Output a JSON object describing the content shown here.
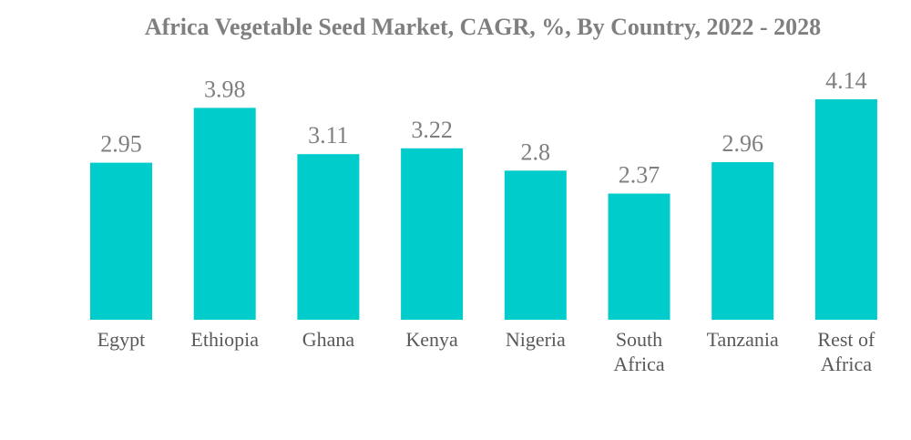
{
  "chart_data": {
    "type": "bar",
    "title": "Africa Vegetable Seed Market, CAGR, %, By Country, 2022 - 2028",
    "xlabel": "",
    "ylabel": "",
    "categories": [
      [
        "Egypt"
      ],
      [
        "Ethiopia"
      ],
      [
        "Ghana"
      ],
      [
        "Kenya"
      ],
      [
        "Nigeria"
      ],
      [
        "South",
        "Africa"
      ],
      [
        "Tanzania"
      ],
      [
        "Rest of",
        "Africa"
      ]
    ],
    "values": [
      2.95,
      3.98,
      3.11,
      3.22,
      2.8,
      2.37,
      2.96,
      4.14
    ],
    "value_labels": [
      "2.95",
      "3.98",
      "3.11",
      "3.22",
      "2.8",
      "2.37",
      "2.96",
      "4.14"
    ],
    "ylim": [
      0,
      4.14
    ],
    "grid": false,
    "legend": "none",
    "colors": {
      "bar": "#00cccc",
      "title": "#7f7f7f",
      "value_label": "#7f7f7f",
      "tick_label": "#595959"
    }
  }
}
